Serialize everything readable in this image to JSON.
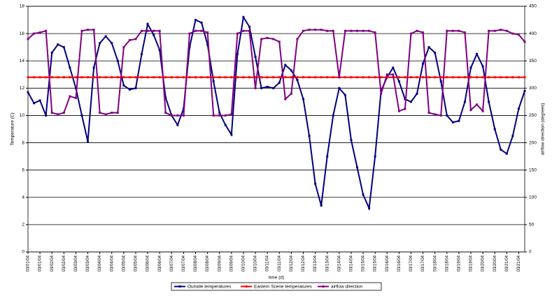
{
  "chart_data": {
    "type": "line",
    "ylabel": "Temperature (C)",
    "y2label": "airflow direction (degrees)",
    "xlabel": "time (d)",
    "categories": [
      "03/01/04",
      null,
      "03/01/04",
      null,
      "03/02/04",
      null,
      "03/02/04",
      null,
      "03/03/04",
      null,
      "03/03/04",
      null,
      "03/04/04",
      null,
      "03/04/04",
      null,
      "03/05/04",
      null,
      "03/05/04",
      null,
      "03/06/04",
      null,
      "03/06/04",
      null,
      "03/07/04",
      null,
      "03/07/04",
      null,
      "03/08/04",
      null,
      "03/08/04",
      null,
      "03/09/04",
      null,
      "03/09/04",
      null,
      "03/10/04",
      null,
      "03/10/04",
      null,
      "03/11/04",
      null,
      "03/11/04",
      null,
      "03/12/04",
      null,
      "03/12/04",
      null,
      "03/13/04",
      null,
      "03/13/04",
      null,
      "03/14/04",
      null,
      "03/14/04",
      null,
      "03/15/04",
      null,
      "03/15/04",
      null,
      "03/16/04",
      null,
      "03/16/04",
      null,
      "03/17/04",
      null,
      "03/17/04",
      null,
      "03/18/04",
      null,
      "03/18/04",
      null,
      "03/19/04",
      null,
      "03/19/04",
      null,
      "03/20/04",
      null,
      "03/20/04",
      null,
      "03/21/04",
      null,
      "03/21/04",
      null
    ],
    "series": [
      {
        "name": "Outside temperatures",
        "color": "#000080",
        "values": [
          11.7,
          10.9,
          11.1,
          10.0,
          14.6,
          15.2,
          15.0,
          13.5,
          12.0,
          10.0,
          8.1,
          13.5,
          15.3,
          15.8,
          15.3,
          14.0,
          12.2,
          11.9,
          12.0,
          14.5,
          16.7,
          15.9,
          14.8,
          11.3,
          10.0,
          9.3,
          10.5,
          15.0,
          17.0,
          16.8,
          15.2,
          12.5,
          10.2,
          9.3,
          8.6,
          14.5,
          17.2,
          16.5,
          14.3,
          12.0,
          12.1,
          12.0,
          12.4,
          13.7,
          13.3,
          12.6,
          11.2,
          8.5,
          5.0,
          3.4,
          7.0,
          10.0,
          12.0,
          11.5,
          8.2,
          6.2,
          4.2,
          3.2,
          7.0,
          11.8,
          12.8,
          13.5,
          12.5,
          11.2,
          11.0,
          11.6,
          13.8,
          15.0,
          14.6,
          12.5,
          10.0,
          9.5,
          9.6,
          11.0,
          13.5,
          14.5,
          13.6,
          11.0,
          9.0,
          7.5,
          7.2,
          8.5,
          10.5,
          11.8
        ]
      },
      {
        "name": "Eastern Scene temperatures",
        "color": "#ff0000",
        "values": [
          12.8,
          12.8,
          12.8,
          12.8,
          12.8,
          12.8,
          12.8,
          12.8,
          12.8,
          12.8,
          12.8,
          12.8,
          12.8,
          12.8,
          12.8,
          12.8,
          12.8,
          12.8,
          12.8,
          12.8,
          12.8,
          12.8,
          12.8,
          12.8,
          12.8,
          12.8,
          12.8,
          12.8,
          12.8,
          12.8,
          12.8,
          12.8,
          12.8,
          12.8,
          12.8,
          12.8,
          12.8,
          12.8,
          12.8,
          12.8,
          12.8,
          12.8,
          12.8,
          12.8,
          12.8,
          12.8,
          12.8,
          12.8,
          12.8,
          12.8,
          12.8,
          12.8,
          12.8,
          12.8,
          12.8,
          12.8,
          12.8,
          12.8,
          12.8,
          12.8,
          12.8,
          12.8,
          12.8,
          12.8,
          12.8,
          12.8,
          12.8,
          12.8,
          12.8,
          12.8,
          12.8,
          12.8,
          12.8,
          12.8,
          12.8,
          12.8,
          12.8,
          12.8,
          12.8,
          12.8,
          12.8,
          12.8,
          12.8,
          12.8
        ]
      },
      {
        "name": "airflow direction",
        "color": "#800080",
        "axis": "y2",
        "values": [
          390,
          400,
          402,
          405,
          255,
          252,
          255,
          285,
          282,
          405,
          407,
          407,
          255,
          252,
          255,
          255,
          375,
          388,
          390,
          405,
          405,
          405,
          405,
          255,
          250,
          250,
          250,
          400,
          405,
          405,
          402,
          250,
          250,
          250,
          252,
          400,
          405,
          405,
          300,
          390,
          392,
          390,
          385,
          280,
          290,
          390,
          405,
          407,
          407,
          407,
          405,
          405,
          320,
          405,
          405,
          405,
          405,
          405,
          402,
          290,
          325,
          325,
          258,
          262,
          400,
          405,
          402,
          255,
          252,
          250,
          405,
          405,
          405,
          402,
          260,
          270,
          258,
          405,
          405,
          407,
          405,
          400,
          398,
          385
        ]
      }
    ],
    "ylim": [
      0,
      18
    ],
    "yticks": [
      0,
      2,
      4,
      6,
      8,
      10,
      12,
      14,
      16,
      18
    ],
    "y2lim": [
      0,
      450
    ],
    "y2ticks": [
      0,
      50,
      100,
      150,
      200,
      250,
      300,
      350,
      400,
      450
    ],
    "grid": true,
    "legend": "bottom"
  }
}
